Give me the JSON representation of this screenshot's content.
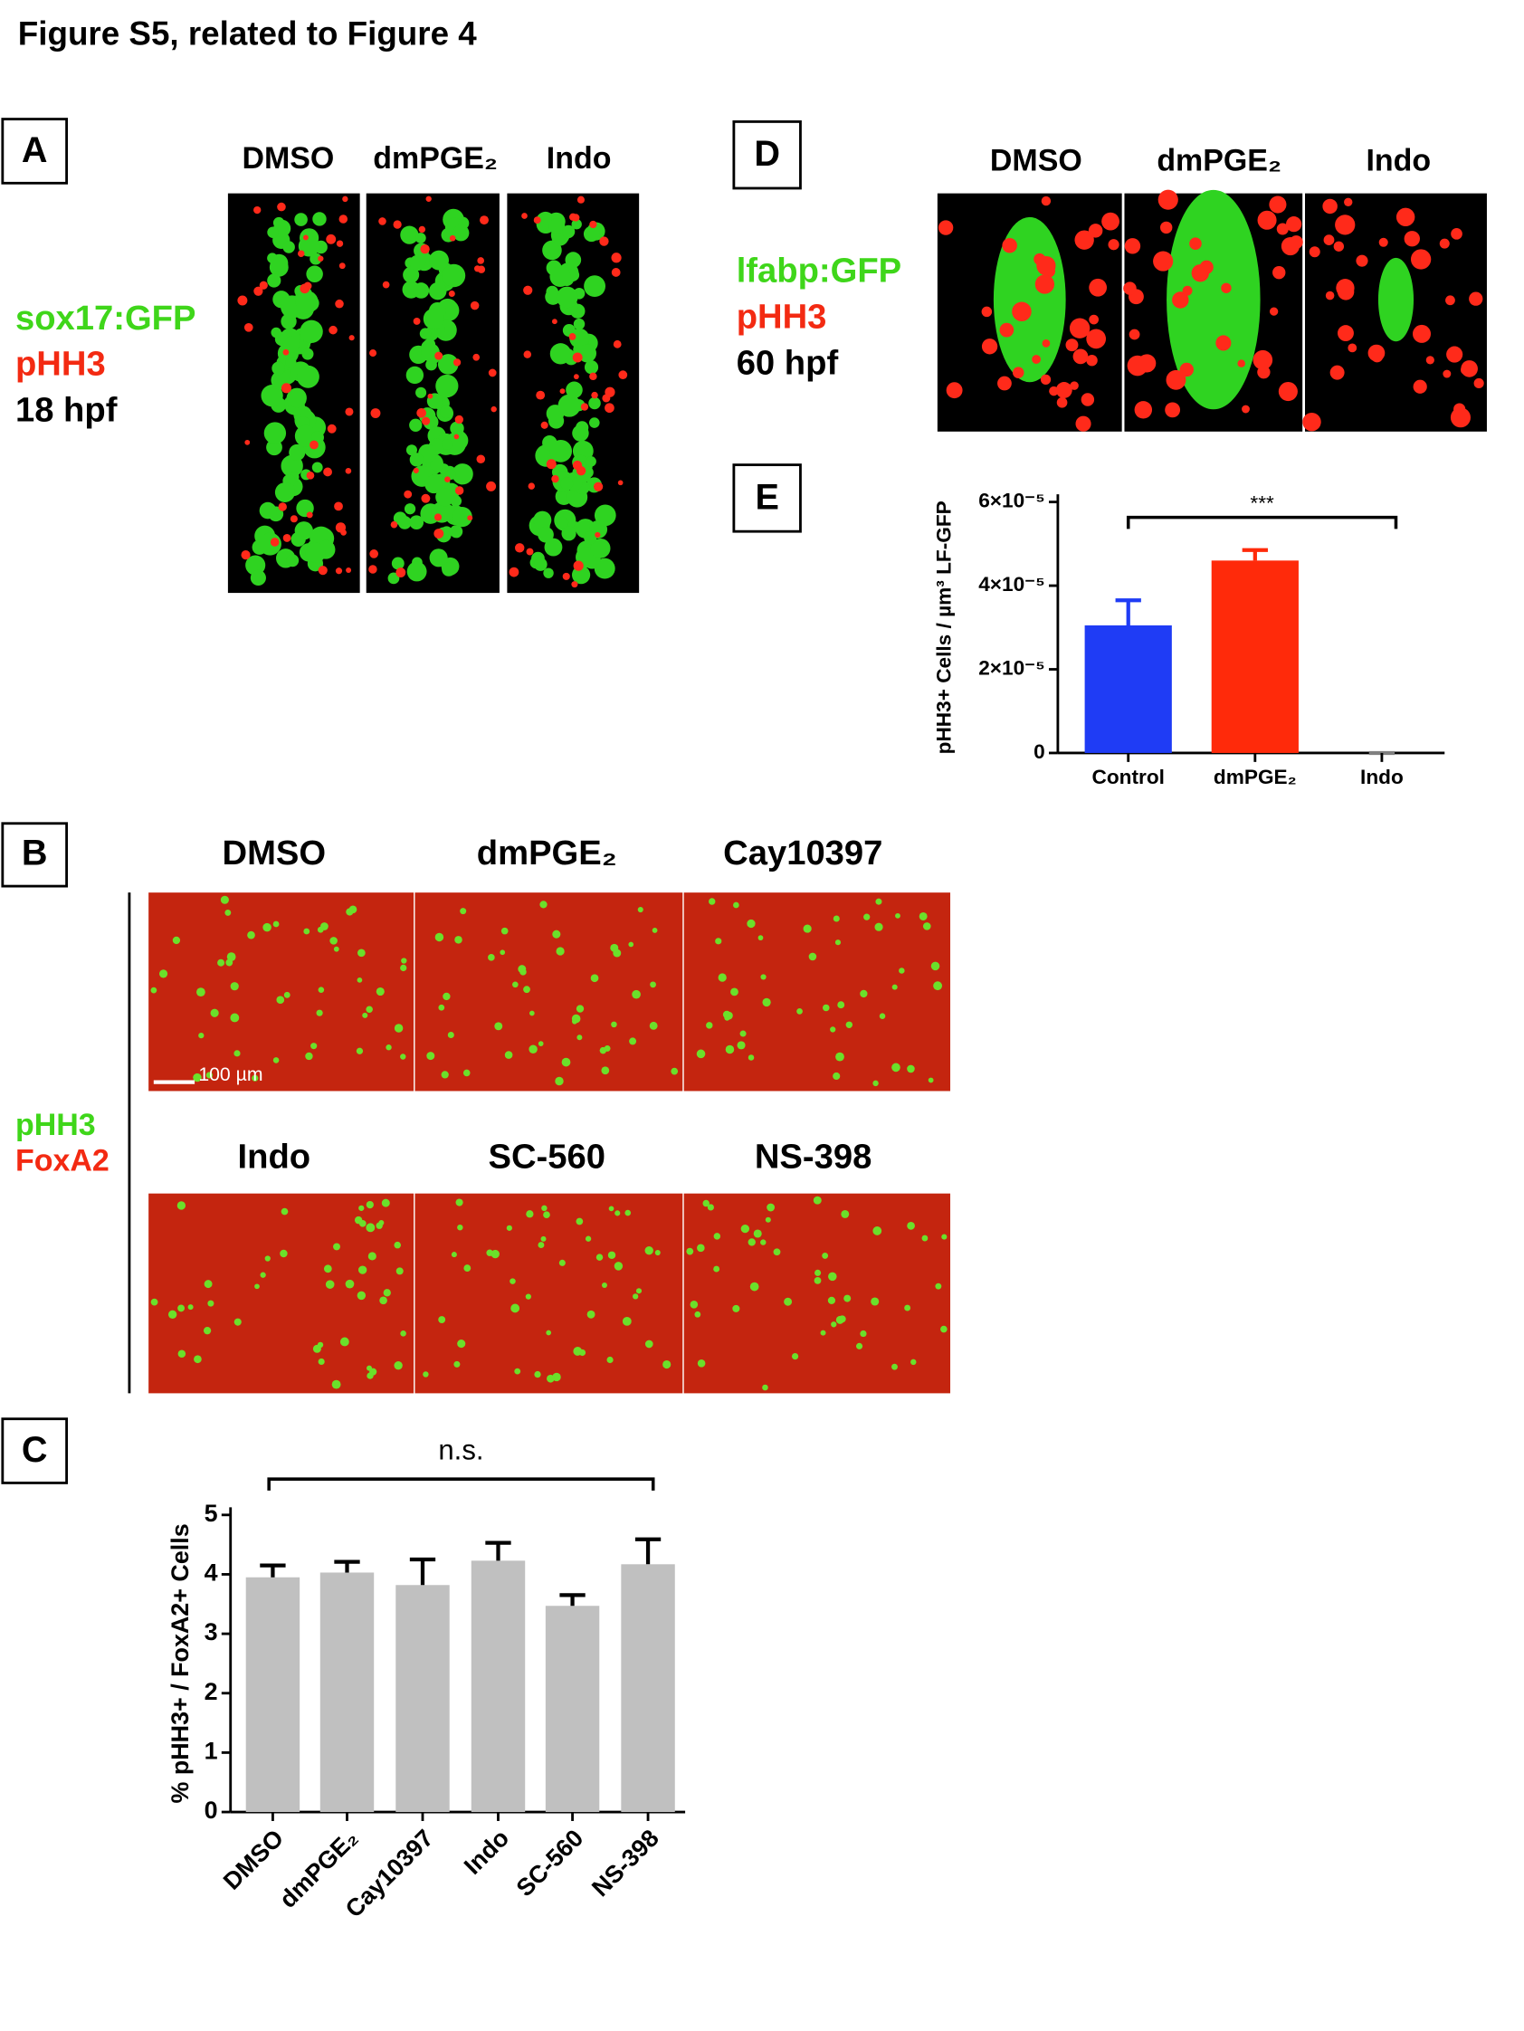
{
  "figure": {
    "title": "Figure S5, related to Figure 4",
    "panel_a": {
      "label": "A",
      "columns": [
        "DMSO",
        "dmPGE₂",
        "Indo"
      ],
      "legend": [
        "sox17:GFP",
        "pHH3",
        "18 hpf"
      ]
    },
    "panel_b": {
      "label": "B",
      "columns": [
        "DMSO",
        "dmPGE₂",
        "Cay10397",
        "Indo",
        "SC-560",
        "NS-398"
      ],
      "legend": [
        "pHH3",
        "FoxA2"
      ],
      "scale_bar": "100 µm"
    },
    "panel_c": {
      "label": "C"
    },
    "panel_d": {
      "label": "D",
      "columns": [
        "DMSO",
        "dmPGE₂",
        "Indo"
      ],
      "legend": [
        "lfabp:GFP",
        "pHH3",
        "60 hpf"
      ]
    },
    "panel_e": {
      "label": "E"
    }
  },
  "chart_data": [
    {
      "type": "bar",
      "y_label": "pHH3+ Cells / µm³ LF-GFP",
      "annotation": "***",
      "categories": [
        "Control",
        "dmPGE₂",
        "Indo"
      ],
      "values": [
        3.05e-05,
        4.6e-05,
        0
      ],
      "errors": [
        6e-06,
        2.5e-06,
        0
      ],
      "colors": [
        "#1f3cf5",
        "#ff2a0a",
        "#808080"
      ],
      "ylim": [
        0,
        6e-05
      ],
      "yticks": [
        0,
        {
          "value": 2e-05,
          "label": "2×10⁻⁵"
        },
        {
          "value": 4e-05,
          "label": "4×10⁻⁵"
        },
        {
          "value": 6e-05,
          "label": "6×10⁻⁵"
        }
      ]
    },
    {
      "type": "bar",
      "y_label": "% pHH3+ / FoxA2+ Cells",
      "annotation": "n.s.",
      "categories": [
        "DMSO",
        "dmPGE₂",
        "Cay10397",
        "Indo",
        "SC-560",
        "NS-398"
      ],
      "values": [
        3.95,
        4.03,
        3.82,
        4.23,
        3.47,
        4.17
      ],
      "errors": [
        0.2,
        0.18,
        0.43,
        0.3,
        0.18,
        0.42
      ],
      "color": "#c0c0c0",
      "ylim": [
        0,
        5
      ],
      "yticks": [
        0,
        1,
        2,
        3,
        4,
        5
      ]
    }
  ]
}
